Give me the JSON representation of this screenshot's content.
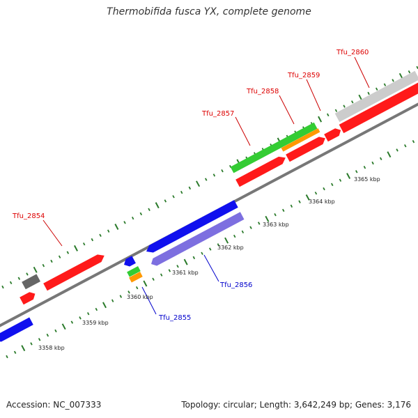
{
  "title": "Thermobifida fusca YX, complete genome",
  "footer": {
    "accession": "Accession: NC_007333",
    "topology": "Topology: circular; Length: 3,642,249 bp; Genes: 3,176"
  },
  "colors": {
    "backbone": "#777777",
    "tick": "#2a7a2a",
    "forward_cds": "#ff1a1a",
    "reverse_cds": "#1010ee",
    "reverse_cds_light": "#7d6fe0",
    "rna_green": "#33cc33",
    "rna_orange": "#ff9900",
    "pseudo_gray": "#666666",
    "pseudo_light": "#cccccc",
    "forward_label": "#dd0000",
    "reverse_label": "#0000cc"
  },
  "kbp_labels": [
    "3358 kbp",
    "3359 kbp",
    "3360 kbp",
    "3361 kbp",
    "3362 kbp",
    "3363 kbp",
    "3364 kbp",
    "3365 kbp"
  ],
  "gene_labels": {
    "forward": [
      "Tfu_2854",
      "Tfu_2857",
      "Tfu_2858",
      "Tfu_2859",
      "Tfu_2860"
    ],
    "reverse": [
      "Tfu_2855",
      "Tfu_2856"
    ]
  }
}
